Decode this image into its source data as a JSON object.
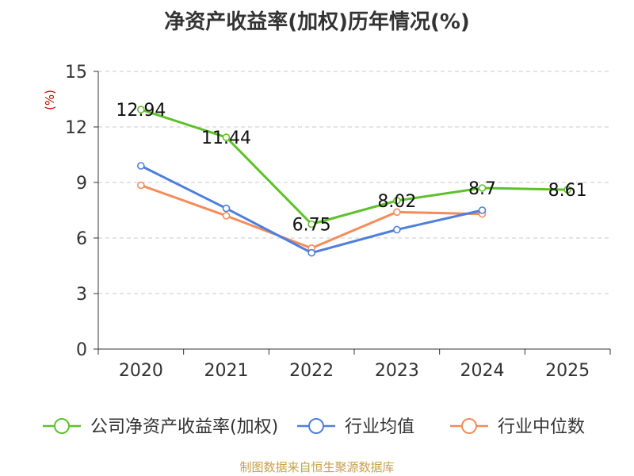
{
  "chart_data": {
    "type": "line",
    "title": "净资产收益率(加权)历年情况(%)",
    "ylabel": "(%)",
    "xlabel": "",
    "ylim": [
      0,
      15
    ],
    "yticks": [
      0,
      3,
      6,
      9,
      12,
      15
    ],
    "categories": [
      "2020",
      "2021",
      "2022",
      "2023",
      "2024",
      "2025"
    ],
    "grid": true,
    "legend_position": "bottom",
    "series": [
      {
        "name": "公司净资产收益率(加权)",
        "color": "#5ec12a",
        "values": [
          12.94,
          11.44,
          6.75,
          8.02,
          8.7,
          8.61
        ],
        "labels": [
          "12.94",
          "11.44",
          "6.75",
          "8.02",
          "8.7",
          "8.61"
        ]
      },
      {
        "name": "行业均值",
        "color": "#4e7fdc",
        "values": [
          9.9,
          7.6,
          5.2,
          6.45,
          7.5,
          null
        ]
      },
      {
        "name": "行业中位数",
        "color": "#f48c5a",
        "values": [
          8.85,
          7.2,
          5.45,
          7.4,
          7.3,
          null
        ]
      }
    ],
    "source": "制图数据来自恒生聚源数据库"
  }
}
